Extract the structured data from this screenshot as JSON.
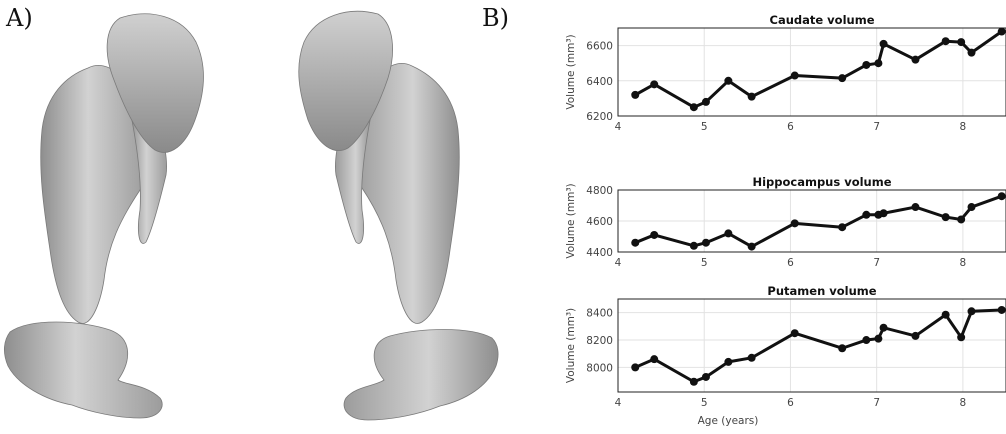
{
  "panels": {
    "a_label": "A)",
    "b_label": "B)"
  },
  "colors": {
    "structure_fill": "#c7c7c7",
    "line": "#111111",
    "grid": "#e2e2e2",
    "frame": "#222222"
  },
  "chart_data": [
    {
      "type": "line",
      "title": "Caudate volume",
      "xlabel": "",
      "ylabel": "Volume (mm³)",
      "xlim": [
        4,
        8.5
      ],
      "ylim": [
        6200,
        6700
      ],
      "xticks": [
        4,
        5,
        6,
        7,
        8
      ],
      "yticks": [
        6200,
        6400,
        6600
      ],
      "grid": true,
      "x": [
        4.2,
        4.42,
        4.88,
        5.02,
        5.28,
        5.55,
        6.05,
        6.6,
        6.88,
        7.02,
        7.08,
        7.45,
        7.8,
        7.98,
        8.1,
        8.45
      ],
      "y": [
        6320,
        6380,
        6250,
        6280,
        6400,
        6310,
        6430,
        6415,
        6490,
        6500,
        6610,
        6520,
        6625,
        6620,
        6560,
        6680
      ]
    },
    {
      "type": "line",
      "title": "Hippocampus volume",
      "xlabel": "",
      "ylabel": "Volume (mm³)",
      "xlim": [
        4,
        8.5
      ],
      "ylim": [
        4400,
        4800
      ],
      "xticks": [
        4,
        5,
        6,
        7,
        8
      ],
      "yticks": [
        4400,
        4600,
        4800
      ],
      "grid": true,
      "x": [
        4.2,
        4.42,
        4.88,
        5.02,
        5.28,
        5.55,
        6.05,
        6.6,
        6.88,
        7.02,
        7.08,
        7.45,
        7.8,
        7.98,
        8.1,
        8.45
      ],
      "y": [
        4460,
        4510,
        4440,
        4460,
        4520,
        4435,
        4585,
        4560,
        4640,
        4640,
        4650,
        4690,
        4625,
        4610,
        4690,
        4760
      ]
    },
    {
      "type": "line",
      "title": "Putamen volume",
      "xlabel": "Age (years)",
      "ylabel": "Volume (mm³)",
      "xlim": [
        4,
        8.5
      ],
      "ylim": [
        7820,
        8500
      ],
      "xticks": [
        4,
        5,
        6,
        7,
        8
      ],
      "yticks": [
        8000,
        8200,
        8400
      ],
      "grid": true,
      "x": [
        4.2,
        4.42,
        4.88,
        5.02,
        5.28,
        5.55,
        6.05,
        6.6,
        6.88,
        7.02,
        7.08,
        7.45,
        7.8,
        7.98,
        8.1,
        8.45
      ],
      "y": [
        8000,
        8060,
        7895,
        7930,
        8040,
        8070,
        8250,
        8140,
        8200,
        8210,
        8290,
        8230,
        8385,
        8220,
        8410,
        8420
      ]
    }
  ]
}
